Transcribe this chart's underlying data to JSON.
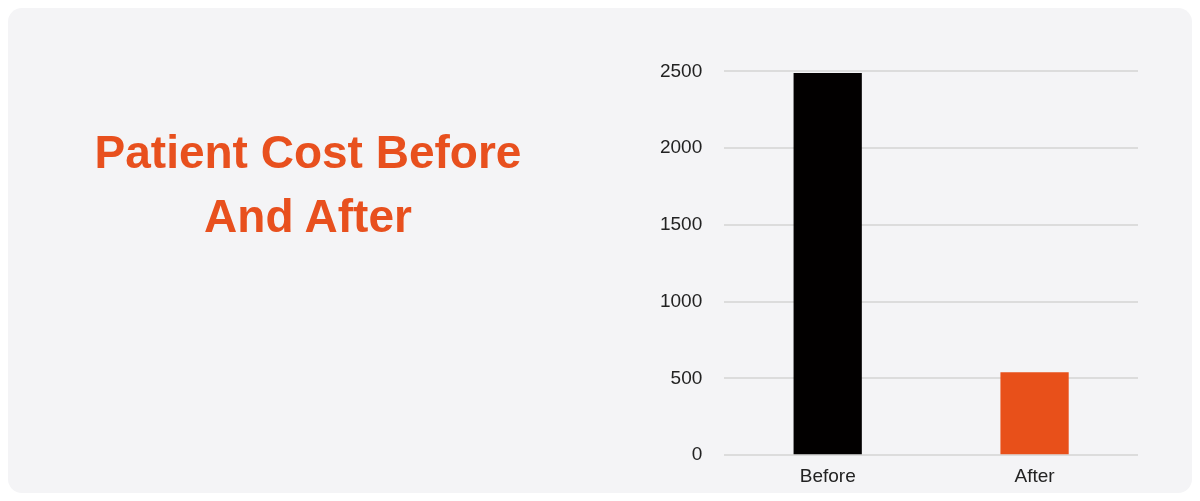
{
  "chart_data": {
    "type": "bar",
    "title": "Patient Cost Before And After",
    "categories": [
      "Before",
      "After"
    ],
    "colors": [
      "#020000",
      "#e8501a"
    ],
    "values": [
      2490,
      540
    ],
    "ylim": [
      0,
      2500
    ],
    "yticks": [
      0,
      500,
      1000,
      1500,
      2000,
      2500
    ],
    "grid": "y"
  }
}
